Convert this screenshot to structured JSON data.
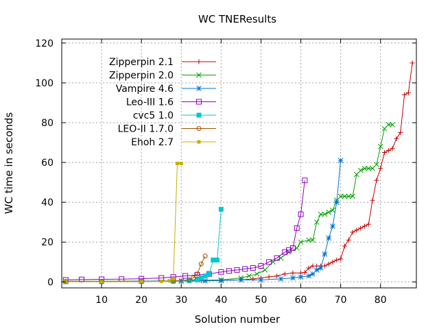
{
  "chart_data": {
    "type": "line",
    "title": "WC TNEResults",
    "xlabel": "Solution number",
    "ylabel": "WC time in seconds",
    "xlim": [
      0,
      89
    ],
    "ylim": [
      -3,
      122
    ],
    "xticks": [
      10,
      20,
      30,
      40,
      50,
      60,
      70,
      80
    ],
    "yticks": [
      0,
      20,
      40,
      60,
      80,
      100,
      120
    ],
    "grid": true,
    "legend_position": "top-left",
    "series": [
      {
        "name": "Zipperpin 2.1",
        "color": "#c00000",
        "marker": "plus",
        "x": [
          1,
          10,
          20,
          30,
          35,
          40,
          45,
          48,
          50,
          52,
          54,
          56,
          58,
          60,
          61,
          62,
          63,
          64,
          65,
          66,
          67,
          68,
          69,
          70,
          71,
          72,
          73,
          74,
          75,
          76,
          77,
          78,
          79,
          80,
          81,
          82,
          83,
          84,
          85,
          86,
          87,
          88
        ],
        "y": [
          0.3,
          0.3,
          0.4,
          0.5,
          0.6,
          0.8,
          1,
          1.5,
          2,
          2.5,
          3,
          4,
          4.5,
          4.5,
          4.7,
          7,
          8,
          8,
          8,
          8,
          9,
          10,
          11,
          11.5,
          18,
          21,
          25,
          26,
          27,
          28,
          29,
          41,
          51,
          57,
          65,
          66,
          67,
          72,
          75,
          94,
          95,
          110
        ]
      },
      {
        "name": "Zipperpin 2.0",
        "color": "#00a000",
        "marker": "x",
        "x": [
          1,
          10,
          20,
          30,
          40,
          45,
          47,
          49,
          51,
          53,
          55,
          57,
          59,
          60,
          62,
          63,
          64,
          65,
          66,
          67,
          68,
          69,
          70,
          71,
          72,
          73,
          74,
          75,
          76,
          77,
          78,
          79,
          80,
          81,
          82,
          83
        ],
        "y": [
          0.3,
          0.3,
          0.4,
          0.6,
          1,
          2,
          3,
          4,
          6,
          10,
          12,
          15,
          17,
          20,
          21,
          21,
          30,
          34,
          34,
          35,
          36,
          41,
          43,
          43,
          43,
          43,
          54,
          56,
          57,
          57,
          57,
          59,
          68,
          77,
          79,
          79
        ]
      },
      {
        "name": "Vampire 4.6",
        "color": "#0070d0",
        "marker": "asterisk",
        "x": [
          1,
          10,
          20,
          30,
          36,
          40,
          45,
          50,
          55,
          58,
          60,
          62,
          63,
          64,
          65,
          66,
          67,
          68,
          69,
          70
        ],
        "y": [
          0.2,
          0.2,
          0.3,
          0.4,
          0.5,
          0.7,
          1,
          1,
          1.5,
          2,
          2.5,
          3,
          4,
          6,
          7,
          14,
          22,
          28,
          40,
          61
        ]
      },
      {
        "name": "Leo-III 1.6",
        "color": "#9000c0",
        "marker": "square-open",
        "x": [
          1,
          5,
          10,
          15,
          20,
          25,
          28,
          31,
          34,
          37,
          40,
          42,
          44,
          46,
          48,
          50,
          52,
          54,
          56,
          57,
          58,
          59,
          60,
          61
        ],
        "y": [
          1,
          1.2,
          1.3,
          1.4,
          1.6,
          2,
          2.5,
          3,
          3.5,
          4,
          5,
          5.5,
          6,
          6.5,
          7,
          8,
          10,
          12,
          15,
          16,
          17,
          27,
          34,
          51
        ]
      },
      {
        "name": "cvc5 1.0",
        "color": "#00c8d0",
        "marker": "square-filled",
        "x": [
          1,
          10,
          20,
          28,
          32,
          34,
          35,
          36,
          37,
          38,
          39,
          40
        ],
        "y": [
          0.1,
          0.1,
          0.2,
          0.3,
          0.6,
          1,
          2,
          3,
          4,
          11,
          11,
          36.5
        ]
      },
      {
        "name": "LEO-II 1.7.0",
        "color": "#a05000",
        "marker": "circle-open",
        "x": [
          1,
          10,
          20,
          28,
          32,
          33,
          34,
          35,
          36
        ],
        "y": [
          0.1,
          0.1,
          0.2,
          0.5,
          1,
          2,
          4,
          9,
          13
        ]
      },
      {
        "name": "Ehoh 2.7",
        "color": "#c0b000",
        "marker": "square-filled-small",
        "x": [
          1,
          10,
          20,
          25,
          27,
          28,
          29,
          30
        ],
        "y": [
          0.1,
          0.1,
          0.2,
          0.3,
          0.5,
          1.5,
          59.5,
          59.5
        ]
      }
    ]
  }
}
